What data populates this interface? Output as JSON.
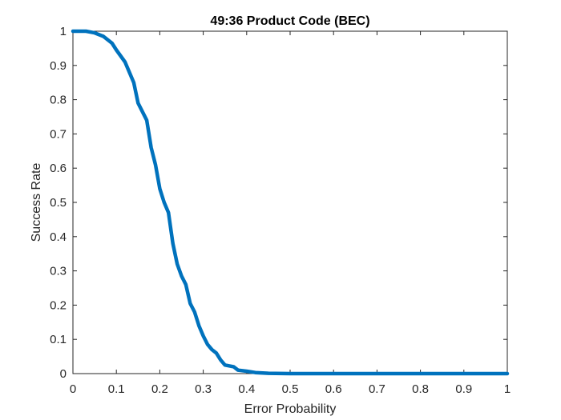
{
  "chart_data": {
    "type": "line",
    "title": "49:36  Product Code (BEC)",
    "xlabel": "Error Probability",
    "ylabel": "Success Rate",
    "xlim": [
      0,
      1
    ],
    "ylim": [
      0,
      1
    ],
    "x_ticks": [
      "0",
      "0.1",
      "0.2",
      "0.3",
      "0.4",
      "0.5",
      "0.6",
      "0.7",
      "0.8",
      "0.9",
      "1"
    ],
    "y_ticks": [
      "0",
      "0.1",
      "0.2",
      "0.3",
      "0.4",
      "0.5",
      "0.6",
      "0.7",
      "0.8",
      "0.9",
      "1"
    ],
    "grid": false,
    "legend": false,
    "line_color": "#0072BD",
    "series": [
      {
        "x": [
          0,
          0.03,
          0.05,
          0.07,
          0.09,
          0.1,
          0.12,
          0.14,
          0.15,
          0.17,
          0.18,
          0.19,
          0.2,
          0.21,
          0.22,
          0.23,
          0.24,
          0.25,
          0.26,
          0.27,
          0.28,
          0.29,
          0.3,
          0.31,
          0.32,
          0.33,
          0.34,
          0.35,
          0.37,
          0.38,
          0.4,
          0.42,
          0.45,
          0.5,
          0.6,
          0.7,
          0.8,
          0.9,
          1.0
        ],
        "y": [
          1.0,
          1.0,
          0.995,
          0.985,
          0.965,
          0.945,
          0.91,
          0.85,
          0.79,
          0.74,
          0.66,
          0.61,
          0.54,
          0.5,
          0.47,
          0.38,
          0.32,
          0.285,
          0.26,
          0.205,
          0.18,
          0.14,
          0.11,
          0.085,
          0.07,
          0.06,
          0.04,
          0.025,
          0.02,
          0.01,
          0.007,
          0.003,
          0.001,
          0,
          0,
          0,
          0,
          0,
          0
        ]
      }
    ]
  }
}
